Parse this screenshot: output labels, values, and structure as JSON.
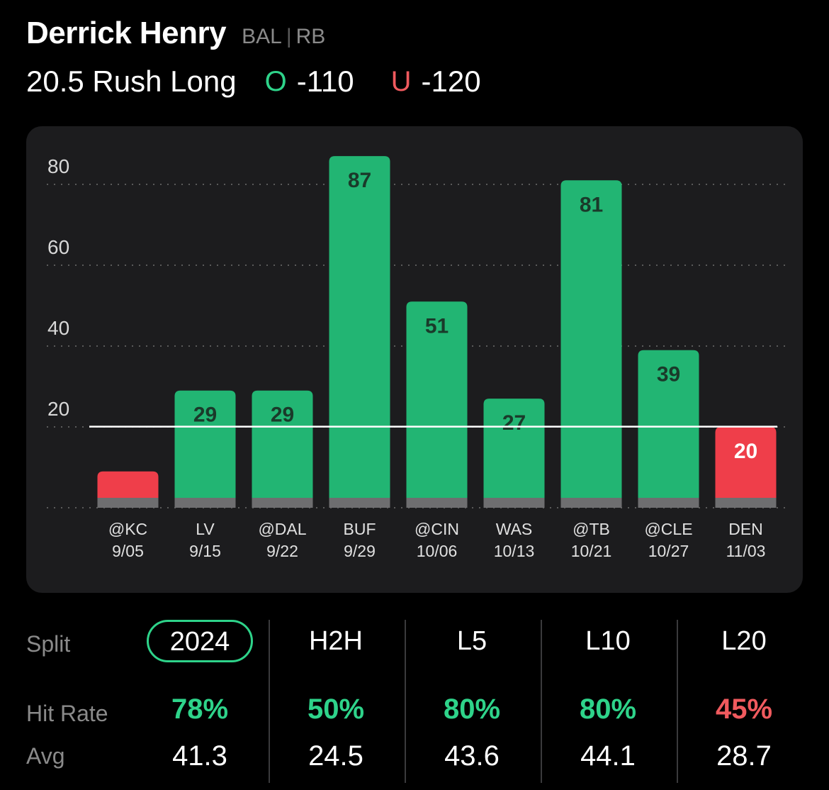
{
  "header": {
    "player_name": "Derrick Henry",
    "team": "BAL",
    "position": "RB",
    "prop_label": "20.5 Rush Long",
    "over": {
      "mark": "O",
      "odds": "-110"
    },
    "under": {
      "mark": "U",
      "odds": "-120"
    }
  },
  "colors": {
    "over": "#22b573",
    "under": "#ef3e4a",
    "over_text": "#2ed38a",
    "under_text": "#f05a5e"
  },
  "chart_data": {
    "type": "bar",
    "line": 20.5,
    "ylim": [
      0,
      95
    ],
    "yticks": [
      20,
      40,
      60,
      80
    ],
    "grid": true,
    "categories": [
      {
        "opponent": "@KC",
        "date": "9/05",
        "value": 9
      },
      {
        "opponent": "LV",
        "date": "9/15",
        "value": 29
      },
      {
        "opponent": "@DAL",
        "date": "9/22",
        "value": 29
      },
      {
        "opponent": "BUF",
        "date": "9/29",
        "value": 87
      },
      {
        "opponent": "@CIN",
        "date": "10/06",
        "value": 51
      },
      {
        "opponent": "WAS",
        "date": "10/13",
        "value": 27
      },
      {
        "opponent": "@TB",
        "date": "10/21",
        "value": 81
      },
      {
        "opponent": "@CLE",
        "date": "10/27",
        "value": 39
      },
      {
        "opponent": "DEN",
        "date": "11/03",
        "value": 20
      }
    ],
    "value_labels": [
      "",
      "29",
      "29",
      "87",
      "51",
      "27",
      "81",
      "39",
      "20"
    ]
  },
  "splits": {
    "labels": {
      "split": "Split",
      "hit_rate": "Hit Rate",
      "avg": "Avg"
    },
    "columns": [
      {
        "tab": "2024",
        "hit_rate": "78%",
        "avg": "41.3",
        "status": "over"
      },
      {
        "tab": "H2H",
        "hit_rate": "50%",
        "avg": "24.5",
        "status": "over"
      },
      {
        "tab": "L5",
        "hit_rate": "80%",
        "avg": "43.6",
        "status": "over"
      },
      {
        "tab": "L10",
        "hit_rate": "80%",
        "avg": "44.1",
        "status": "over"
      },
      {
        "tab": "L20",
        "hit_rate": "45%",
        "avg": "28.7",
        "status": "under"
      }
    ]
  }
}
